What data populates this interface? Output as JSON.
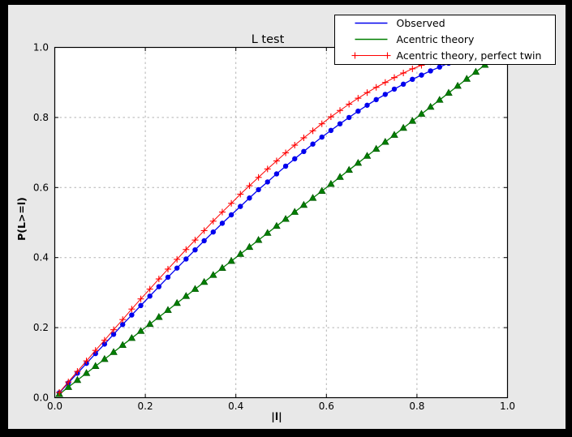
{
  "window": {
    "outer_background": "#000000",
    "figure_background": "#e8e8e8",
    "axes_background": "#ffffff",
    "grid_color": "#b4b4b4",
    "axes_border_color": "#000000"
  },
  "chart_data": {
    "type": "line",
    "title": "L test",
    "xlabel": "|l|",
    "ylabel": "P(L>=l)",
    "xlim": [
      0.0,
      1.0
    ],
    "ylim": [
      0.0,
      1.0
    ],
    "grid": true,
    "grid_style": "dashed",
    "xticks": [
      "0.0",
      "0.2",
      "0.4",
      "0.6",
      "0.8",
      "1.0"
    ],
    "yticks": [
      "0.0",
      "0.2",
      "0.4",
      "0.6",
      "0.8",
      "1.0"
    ],
    "legend": {
      "position": "upper right",
      "entries": [
        "Observed",
        "Acentric theory",
        "Acentric theory, perfect twin"
      ]
    },
    "x": [
      0.01,
      0.03,
      0.05,
      0.07,
      0.09,
      0.11,
      0.13,
      0.15,
      0.17,
      0.19,
      0.21,
      0.23,
      0.25,
      0.27,
      0.29,
      0.31,
      0.33,
      0.35,
      0.37,
      0.39,
      0.41,
      0.43,
      0.45,
      0.47,
      0.49,
      0.51,
      0.53,
      0.55,
      0.57,
      0.59,
      0.61,
      0.63,
      0.65,
      0.67,
      0.69,
      0.71,
      0.73,
      0.75,
      0.77,
      0.79,
      0.81,
      0.83,
      0.85,
      0.87,
      0.89,
      0.91,
      0.93,
      0.95,
      0.97,
      0.99
    ],
    "series": [
      {
        "name": "Observed",
        "color": "#0000ee",
        "marker": "circle",
        "values": [
          0.014,
          0.042,
          0.07,
          0.098,
          0.126,
          0.153,
          0.181,
          0.209,
          0.236,
          0.263,
          0.29,
          0.317,
          0.344,
          0.37,
          0.396,
          0.422,
          0.448,
          0.473,
          0.498,
          0.522,
          0.546,
          0.57,
          0.594,
          0.616,
          0.639,
          0.661,
          0.682,
          0.703,
          0.724,
          0.744,
          0.763,
          0.782,
          0.8,
          0.818,
          0.835,
          0.851,
          0.866,
          0.881,
          0.895,
          0.909,
          0.921,
          0.933,
          0.944,
          0.955,
          0.964,
          0.973,
          0.98,
          0.987,
          0.993,
          0.998
        ]
      },
      {
        "name": "Acentric theory",
        "color": "#007f00",
        "marker": "triangle",
        "values": [
          0.01,
          0.03,
          0.05,
          0.07,
          0.09,
          0.11,
          0.13,
          0.15,
          0.17,
          0.19,
          0.21,
          0.23,
          0.25,
          0.27,
          0.29,
          0.31,
          0.33,
          0.35,
          0.37,
          0.39,
          0.41,
          0.43,
          0.45,
          0.47,
          0.49,
          0.51,
          0.53,
          0.55,
          0.57,
          0.59,
          0.61,
          0.63,
          0.65,
          0.67,
          0.69,
          0.71,
          0.73,
          0.75,
          0.77,
          0.79,
          0.81,
          0.83,
          0.85,
          0.87,
          0.89,
          0.91,
          0.93,
          0.95,
          0.97,
          0.99
        ]
      },
      {
        "name": "Acentric theory, perfect twin",
        "color": "#ff0000",
        "marker": "plus",
        "values": [
          0.015,
          0.045,
          0.075,
          0.105,
          0.135,
          0.164,
          0.194,
          0.223,
          0.253,
          0.282,
          0.31,
          0.339,
          0.367,
          0.395,
          0.423,
          0.45,
          0.477,
          0.504,
          0.53,
          0.555,
          0.581,
          0.605,
          0.629,
          0.653,
          0.676,
          0.699,
          0.721,
          0.742,
          0.762,
          0.782,
          0.802,
          0.82,
          0.838,
          0.855,
          0.871,
          0.886,
          0.9,
          0.914,
          0.927,
          0.939,
          0.949,
          0.959,
          0.968,
          0.976,
          0.983,
          0.988,
          0.993,
          0.996,
          0.999,
          1.0
        ]
      }
    ]
  }
}
